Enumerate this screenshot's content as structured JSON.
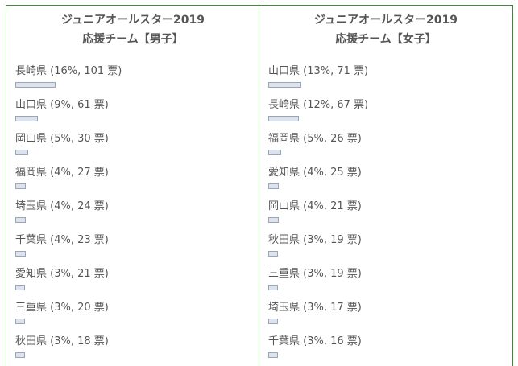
{
  "colors": {
    "border": "#3c8a34",
    "bar_fill": "#dde3ec",
    "bar_border": "#9aa6b8",
    "text": "#555555"
  },
  "polls": [
    {
      "title_line1": "ジュニアオールスター2019",
      "title_line2": "応援チーム【男子】",
      "items": [
        {
          "label": "長崎県 (16%, 101 票)",
          "percent": 16
        },
        {
          "label": "山口県 (9%, 61 票)",
          "percent": 9
        },
        {
          "label": "岡山県 (5%, 30 票)",
          "percent": 5
        },
        {
          "label": "福岡県 (4%, 27 票)",
          "percent": 4
        },
        {
          "label": "埼玉県 (4%, 24 票)",
          "percent": 4
        },
        {
          "label": "千葉県 (4%, 23 票)",
          "percent": 4
        },
        {
          "label": "愛知県 (3%, 21 票)",
          "percent": 3
        },
        {
          "label": "三重県 (3%, 20 票)",
          "percent": 3
        },
        {
          "label": "秋田県 (3%, 18 票)",
          "percent": 3
        }
      ]
    },
    {
      "title_line1": "ジュニアオールスター2019",
      "title_line2": "応援チーム【女子】",
      "items": [
        {
          "label": "山口県 (13%, 71 票)",
          "percent": 13
        },
        {
          "label": "長崎県 (12%, 67 票)",
          "percent": 12
        },
        {
          "label": "福岡県 (5%, 26 票)",
          "percent": 5
        },
        {
          "label": "愛知県 (4%, 25 票)",
          "percent": 4
        },
        {
          "label": "岡山県 (4%, 21 票)",
          "percent": 4
        },
        {
          "label": "秋田県 (3%, 19 票)",
          "percent": 3
        },
        {
          "label": "三重県 (3%, 19 票)",
          "percent": 3
        },
        {
          "label": "埼玉県 (3%, 17 票)",
          "percent": 3
        },
        {
          "label": "千葉県 (3%, 16 票)",
          "percent": 3
        }
      ]
    }
  ]
}
